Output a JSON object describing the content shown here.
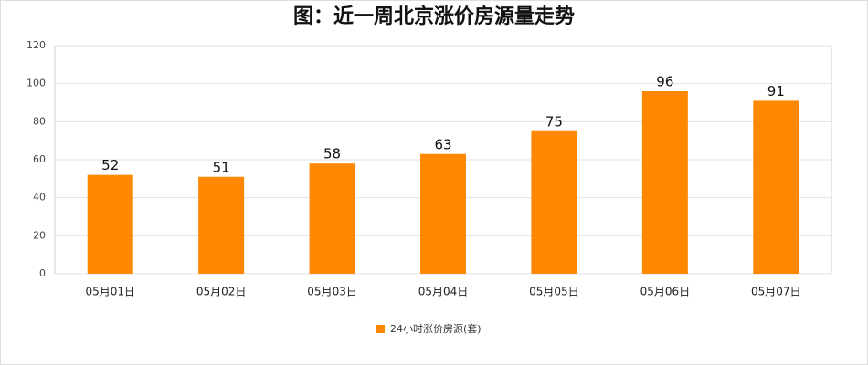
{
  "chart_data": {
    "type": "bar",
    "title": "图：近一周北京涨价房源量走势",
    "categories": [
      "05月01日",
      "05月02日",
      "05月03日",
      "05月04日",
      "05月05日",
      "05月06日",
      "05月07日"
    ],
    "series": [
      {
        "name": "24小时涨价房源(套)",
        "color": "#ff8800",
        "values": [
          52,
          51,
          58,
          63,
          75,
          96,
          91
        ]
      }
    ],
    "ylim": [
      0,
      120
    ],
    "yticks": [
      0,
      20,
      40,
      60,
      80,
      100,
      120
    ],
    "grid": true
  }
}
